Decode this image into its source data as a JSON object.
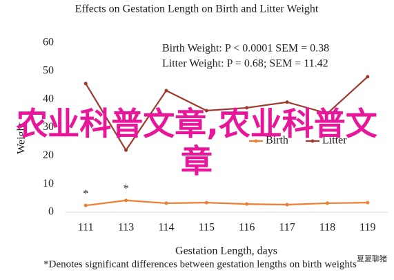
{
  "chart_data": {
    "type": "line",
    "title": "Effects on Gestation Length on Birth and Litter Weight",
    "x_label": "Gestation Length, days",
    "y_label": "Weight",
    "footnote": "*Denotes significant differences between gestation lengths on birth weights",
    "annotations": [
      "Birth Weight: P < 0.0001 SEM = 0.38",
      "Litter Weight: P = 0.68; SEM = 11.42"
    ],
    "categories": [
      "111",
      "113",
      "114",
      "115",
      "116",
      "117",
      "118",
      "119"
    ],
    "series": [
      {
        "name": "Birth",
        "color": "#ed7d31",
        "values": [
          2.4,
          4.2,
          3.2,
          3.4,
          2.9,
          2.7,
          3.2,
          3.4
        ],
        "significance_labels": [
          "*",
          "*",
          null,
          null,
          null,
          null,
          null,
          null
        ]
      },
      {
        "name": "Litter",
        "color": "#9e3a30",
        "values": [
          45.6,
          22,
          43.1,
          36,
          37,
          39,
          35,
          48
        ]
      }
    ],
    "ylim": [
      0,
      60
    ],
    "yticks": [
      0,
      10,
      20,
      30,
      40,
      50,
      60
    ],
    "grid": false
  },
  "overlay_text": "农业科普文章,农业科普文章",
  "watermark": "夏夏聊猪"
}
